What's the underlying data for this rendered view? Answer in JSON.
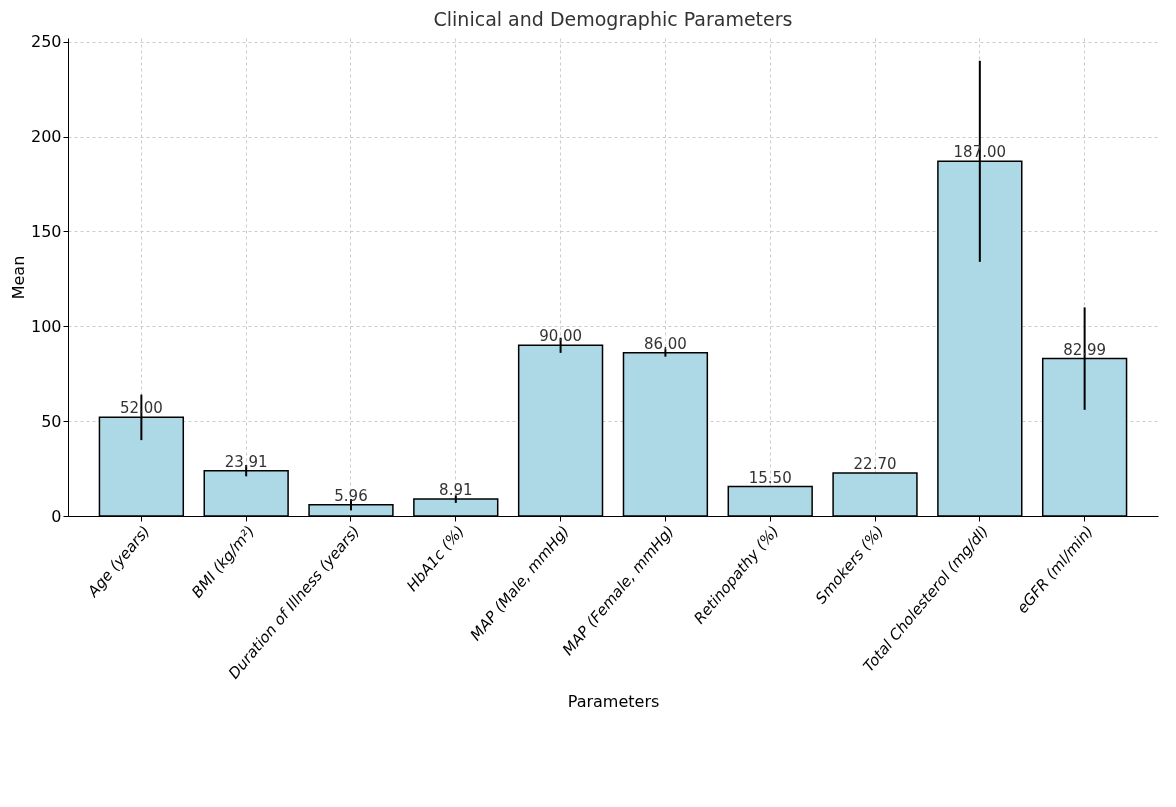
{
  "chart_data": {
    "type": "bar",
    "title": "Clinical and Demographic Parameters",
    "xlabel": "Parameters",
    "ylabel": "Mean",
    "categories": [
      "Age (years)",
      "BMI (kg/m²)",
      "Duration of Illness (years)",
      "HbA1c (%)",
      "MAP (Male, mmHg)",
      "MAP (Female, mmHg)",
      "Retinopathy (%)",
      "Smokers (%)",
      "Total Cholesterol (mg/dl)",
      "eGFR (ml/min)"
    ],
    "values": [
      52.0,
      23.91,
      5.96,
      8.91,
      90.0,
      86.0,
      15.5,
      22.7,
      187.0,
      82.99
    ],
    "errors": [
      12,
      3,
      3,
      2,
      4,
      2,
      null,
      null,
      53,
      27
    ],
    "color": "#add8e6",
    "value_labels": [
      "52.00",
      "23.91",
      "5.96",
      "8.91",
      "90.00",
      "86.00",
      "15.50",
      "22.70",
      "187.00",
      "82.99"
    ],
    "ylim": [
      0,
      252
    ],
    "yticks": [
      0,
      50,
      100,
      150,
      200,
      250
    ],
    "grid": true
  }
}
